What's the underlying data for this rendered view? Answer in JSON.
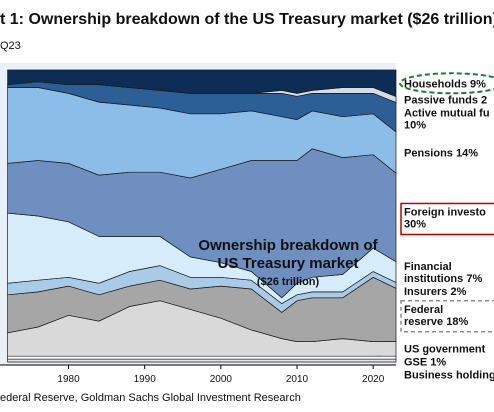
{
  "title": "t 1: Ownership breakdown of the US Treasury market ($26 trillion)",
  "subtitle": "Q23",
  "source": "ederal Reserve, Goldman Sachs Global Investment Research",
  "colors": {
    "households": "#0c2d55",
    "passive_funds": "#d6dbe3",
    "active_mutual_funds": "#2c5f95",
    "pensions": "#8cbde8",
    "foreign_investors": "#6f8fc0",
    "financial_institutions": "#d6ecfb",
    "insurers": "#a9cbe8",
    "federal_reserve": "#a6a6a6",
    "us_government": "#d9d9d9",
    "gse": "#ffffff",
    "business_holdings": "#e5e5e5",
    "highlight_red": "#c00000",
    "highlight_green": "#1e7a3c"
  },
  "chart_data": {
    "type": "area",
    "stacked": true,
    "normalized": true,
    "title": "",
    "xlabel": "",
    "ylabel": "",
    "xlim": [
      1971,
      2023
    ],
    "ylim": [
      0,
      100
    ],
    "x_ticks": [
      "1980",
      "1990",
      "2000",
      "2010",
      "2020"
    ],
    "x": [
      1972,
      1976,
      1980,
      1984,
      1988,
      1992,
      1996,
      2000,
      2004,
      2008,
      2010,
      2012,
      2016,
      2020,
      2023
    ],
    "series": [
      {
        "key": "business_holdings",
        "values": [
          1,
          1,
          1,
          1,
          1,
          1,
          1,
          1,
          1,
          1,
          1,
          1,
          1,
          1,
          1
        ]
      },
      {
        "key": "gse",
        "values": [
          1,
          1,
          1,
          1,
          1,
          1,
          1,
          1,
          1,
          1,
          1,
          1,
          1,
          1,
          1
        ]
      },
      {
        "key": "us_government",
        "values": [
          8,
          10,
          14,
          12,
          17,
          19,
          16,
          13,
          9,
          6,
          5,
          5,
          6,
          5,
          5
        ]
      },
      {
        "key": "federal_reserve",
        "values": [
          13,
          12,
          10,
          9,
          7,
          7,
          7,
          11,
          14,
          9,
          14,
          15,
          14,
          22,
          18
        ]
      },
      {
        "key": "insurers",
        "values": [
          4,
          4,
          3,
          4,
          5,
          5,
          4,
          3,
          3,
          3,
          2,
          2,
          2,
          2,
          2
        ]
      },
      {
        "key": "financial_institutions",
        "values": [
          24,
          22,
          19,
          16,
          12,
          10,
          7,
          5,
          3,
          2,
          4,
          5,
          6,
          8,
          7
        ]
      },
      {
        "key": "foreign_investors",
        "values": [
          17,
          19,
          20,
          21,
          22,
          22,
          27,
          32,
          38,
          47,
          42,
          44,
          40,
          32,
          30
        ]
      },
      {
        "key": "pensions",
        "values": [
          26,
          25,
          24,
          25,
          23,
          22,
          22,
          19,
          17,
          15,
          14,
          13,
          14,
          14,
          14
        ]
      },
      {
        "key": "active_mutual_funds",
        "values": [
          1,
          2,
          3,
          6,
          6,
          6,
          7,
          7,
          6,
          8,
          8,
          6,
          8,
          7,
          10
        ]
      },
      {
        "key": "passive_funds",
        "values": [
          0,
          0,
          0,
          0,
          0,
          0,
          0,
          0,
          0,
          1,
          1,
          1,
          2,
          2,
          2
        ]
      },
      {
        "key": "households",
        "values": [
          5,
          4,
          5,
          5,
          6,
          7,
          8,
          8,
          8,
          7,
          8,
          7,
          6,
          6,
          9
        ]
      }
    ],
    "labels": [
      {
        "key": "households",
        "lines": [
          "Households 9%"
        ],
        "box": "green-dashed"
      },
      {
        "key": "passive_funds",
        "lines": [
          "Passive funds 2"
        ],
        "box": "none"
      },
      {
        "key": "active_mutual_funds",
        "lines": [
          "Active mutual fu",
          "10%"
        ],
        "box": "none"
      },
      {
        "key": "pensions",
        "lines": [
          "Pensions 14%"
        ],
        "box": "none"
      },
      {
        "key": "foreign_investors",
        "lines": [
          "Foreign investo",
          "30%"
        ],
        "box": "red"
      },
      {
        "key": "financial_institutions",
        "lines": [
          "Financial",
          "institutions 7%"
        ],
        "box": "none"
      },
      {
        "key": "insurers",
        "lines": [
          "Insurers 2%"
        ],
        "box": "none"
      },
      {
        "key": "federal_reserve",
        "lines": [
          "Federal",
          "reserve 18%"
        ],
        "box": "gray-dashed"
      },
      {
        "key": "us_government",
        "lines": [
          "US government"
        ],
        "box": "none"
      },
      {
        "key": "gse",
        "lines": [
          "GSE 1%"
        ],
        "box": "none"
      },
      {
        "key": "business_holdings",
        "lines": [
          "Business holding"
        ],
        "box": "none"
      }
    ],
    "center_text": {
      "line1": "Ownership breakdown of",
      "line2": "US Treasury market",
      "line3": "($26 trillion)"
    }
  }
}
